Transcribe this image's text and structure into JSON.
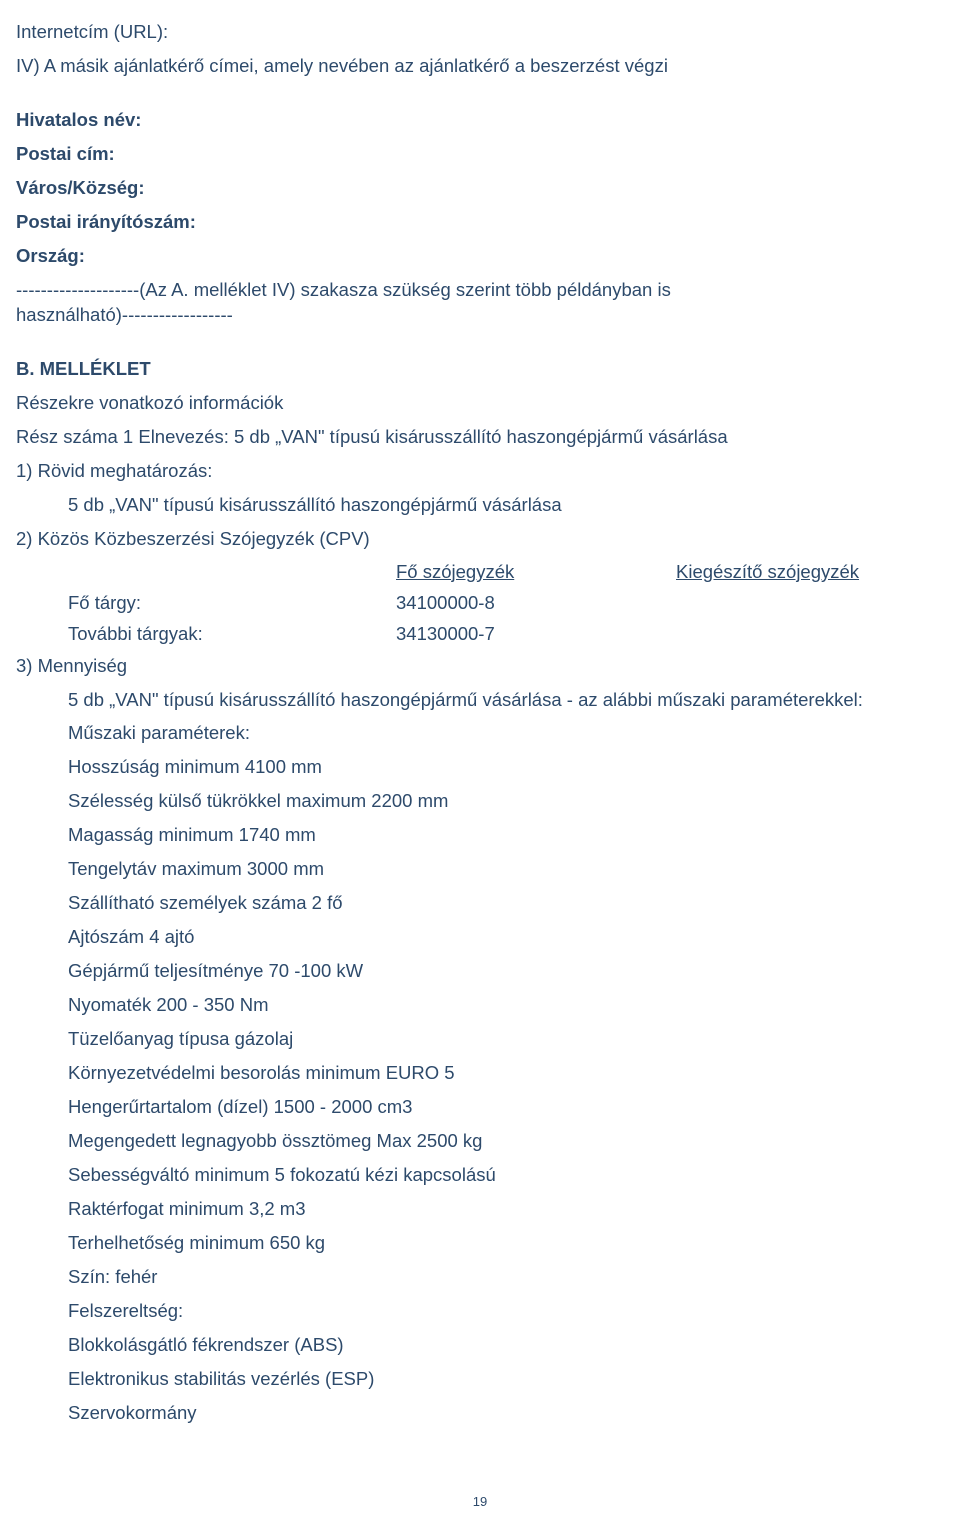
{
  "top": {
    "url_label": "Internetcím (URL):",
    "section_iv": "IV) A másik ajánlatkérő címei, amely nevében az ajánlatkérő a beszerzést végzi",
    "official_name": "Hivatalos név:",
    "postal_address": "Postai cím:",
    "city": "Város/Község:",
    "postcode": "Postai irányítószám:",
    "country": "Ország:",
    "dashes_note": "--------------------(Az A. melléklet IV) szakasza szükség szerint több példányban is használható)------------------"
  },
  "annex": {
    "title": "B. MELLÉKLET",
    "parts_info": "Részekre vonatkozó információk",
    "part_num_label": "Rész száma",
    "part_num_value": "1",
    "part_name_label": "Elnevezés:",
    "part_name_value": "5 db „VAN\" típusú kisárusszállító haszongépjármű vásárlása",
    "s1_label": "1) Rövid meghatározás:",
    "s1_text": "5 db „VAN\" típusú kisárusszállító haszongépjármű vásárlása",
    "s2_label": "2) Közös Közbeszerzési Szójegyzék (CPV)",
    "cpv": {
      "main_dict": "Fő szójegyzék",
      "supp_dict": "Kiegészítő szójegyzék",
      "main_subj_label": "Fő tárgy:",
      "main_subj_code": "34100000-8",
      "more_subj_label": "További tárgyak:",
      "more_subj_code": "34130000-7"
    },
    "s3_label": "3) Mennyiség",
    "s3_intro": "5 db „VAN\" típusú kisárusszállító haszongépjármű vásárlása - az alábbi műszaki paraméterekkel:",
    "specs": [
      "Műszaki paraméterek:",
      "Hosszúság minimum 4100 mm",
      "Szélesség külső tükrökkel maximum 2200 mm",
      "Magasság minimum 1740 mm",
      "Tengelytáv maximum 3000 mm",
      "Szállítható személyek száma 2 fő",
      "Ajtószám 4 ajtó",
      "Gépjármű teljesítménye 70 -100 kW",
      "Nyomaték 200 - 350 Nm",
      "Tüzelőanyag típusa gázolaj",
      "Környezetvédelmi besorolás minimum EURO 5",
      "Hengerűrtartalom (dízel) 1500 - 2000 cm3",
      "Megengedett legnagyobb össztömeg Max 2500 kg",
      "Sebességváltó minimum 5 fokozatú kézi kapcsolású",
      "Raktérfogat minimum 3,2 m3",
      "Terhelhetőség minimum 650 kg",
      "Szín: fehér",
      "Felszereltség:",
      "Blokkolásgátló fékrendszer (ABS)",
      "Elektronikus stabilitás vezérlés (ESP)",
      "Szervokormány"
    ]
  },
  "page_number": "19"
}
